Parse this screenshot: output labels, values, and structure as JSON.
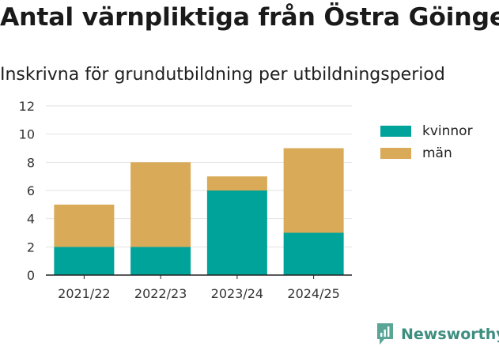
{
  "title": "Antal värnpliktiga från Östra Göinge",
  "subtitle": "Inskrivna för grundutbildning per utbildningsperiod",
  "brand": "Newsworthy",
  "colors": {
    "kvinnor": "#00a39a",
    "man": "#d9aa57",
    "axis": "#222222",
    "grid": "#e2e2e2",
    "brand": "#3e8e80"
  },
  "chart_data": {
    "type": "bar",
    "stacked": true,
    "categories": [
      "2021/22",
      "2022/23",
      "2023/24",
      "2024/25"
    ],
    "series": [
      {
        "name": "kvinnor",
        "values": [
          2,
          2,
          6,
          3
        ]
      },
      {
        "name": "män",
        "values": [
          3,
          6,
          1,
          6
        ]
      }
    ],
    "ylim": [
      0,
      12
    ],
    "yticks": [
      0,
      2,
      4,
      6,
      8,
      10,
      12
    ],
    "grid": true,
    "legend_position": "right"
  }
}
